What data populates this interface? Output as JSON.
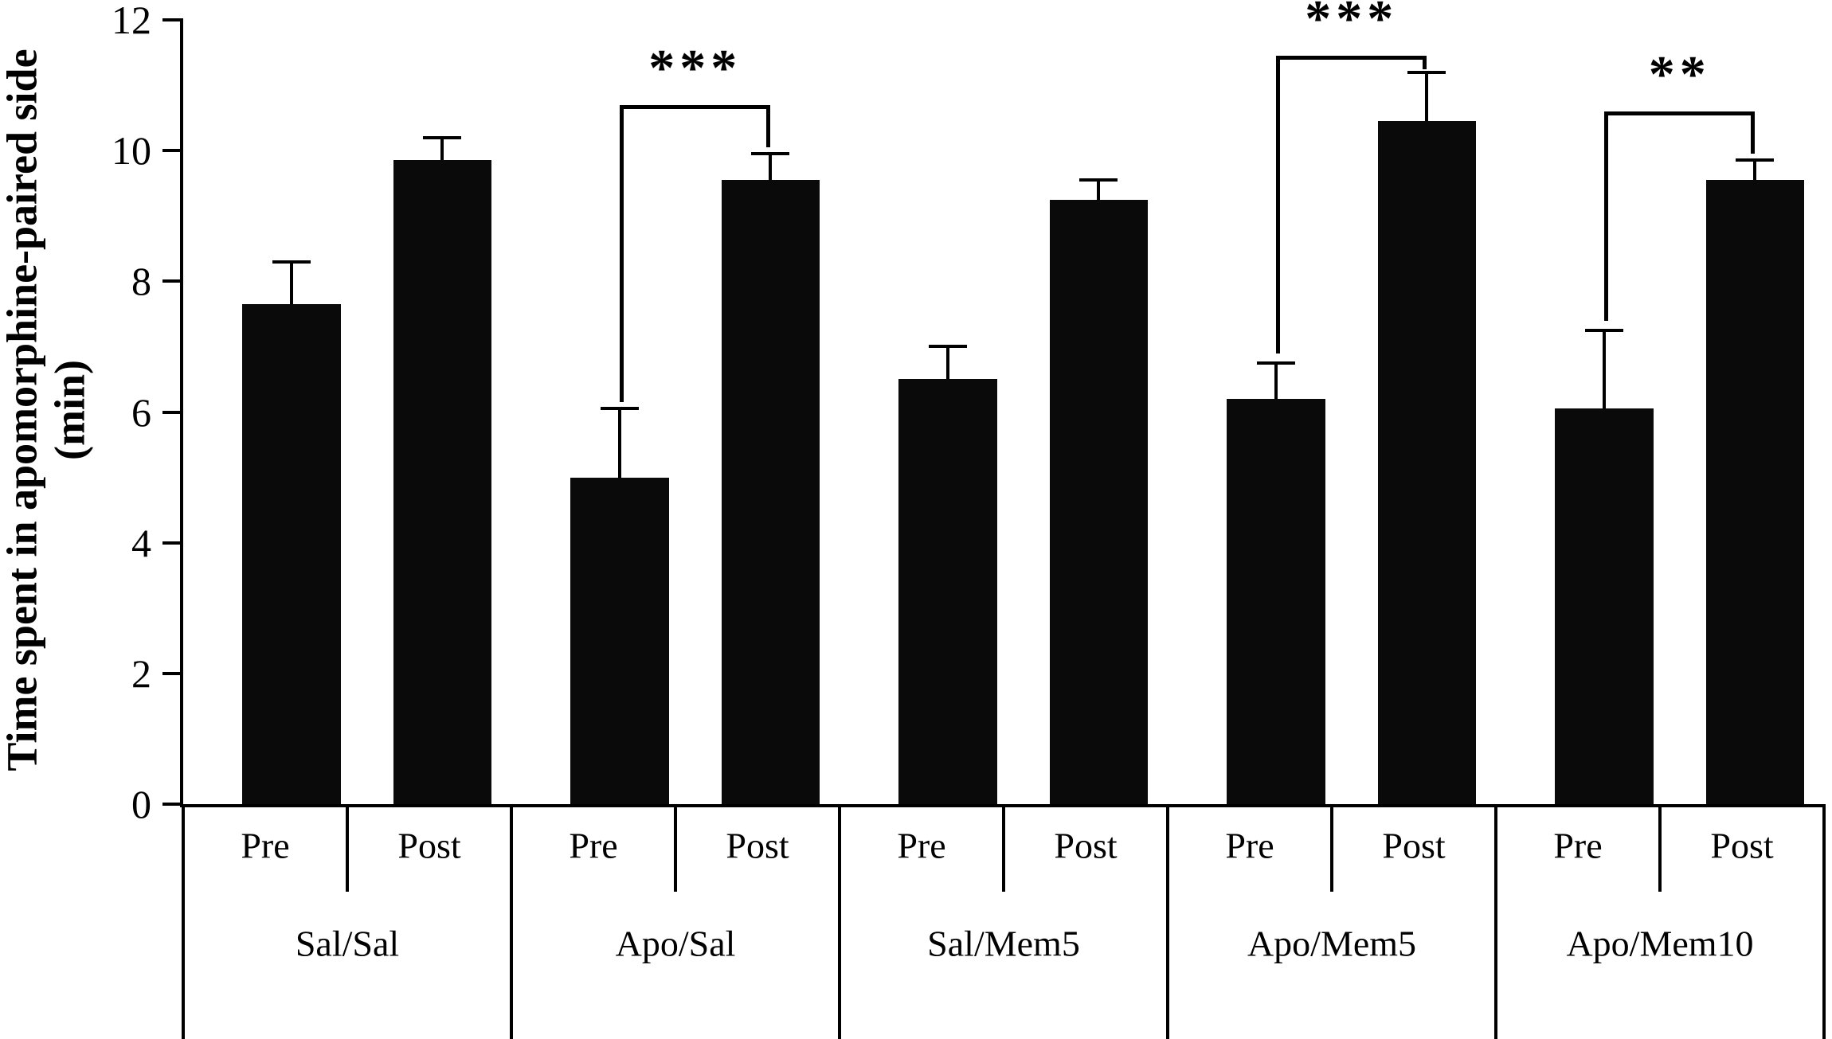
{
  "chart_data": {
    "type": "bar",
    "title": "",
    "ylabel": "Time spent in apomorphine-paired side (min)",
    "xlabel": "",
    "ylim": [
      0,
      12
    ],
    "yticks": [
      0,
      2,
      4,
      6,
      8,
      10,
      12
    ],
    "grid": false,
    "legend": "none",
    "bar_color": "#0a0a0a",
    "groups": [
      "Sal/Sal",
      "Apo/Sal",
      "Sal/Mem5",
      "Apo/Mem5",
      "Apo/Mem10"
    ],
    "conditions": [
      "Pre",
      "Post"
    ],
    "series": [
      {
        "name": "Pre",
        "values": [
          7.65,
          5.0,
          6.5,
          6.2,
          6.05
        ],
        "errors": [
          0.65,
          1.05,
          0.5,
          0.55,
          1.2
        ]
      },
      {
        "name": "Post",
        "values": [
          9.85,
          9.55,
          9.25,
          10.45,
          9.55
        ],
        "errors": [
          0.35,
          0.4,
          0.3,
          0.75,
          0.3
        ]
      }
    ],
    "annotations": [
      {
        "group": "Apo/Sal",
        "group_index": 1,
        "label": "***",
        "line_y": 10.7,
        "left_drop_to": 6.15,
        "right_drop_to": 10.05
      },
      {
        "group": "Apo/Mem5",
        "group_index": 3,
        "label": "***",
        "line_y": 11.45,
        "left_drop_to": 6.9,
        "right_drop_to": 11.25
      },
      {
        "group": "Apo/Mem10",
        "group_index": 4,
        "label": "**",
        "line_y": 10.6,
        "left_drop_to": 7.4,
        "right_drop_to": 9.95
      }
    ]
  }
}
